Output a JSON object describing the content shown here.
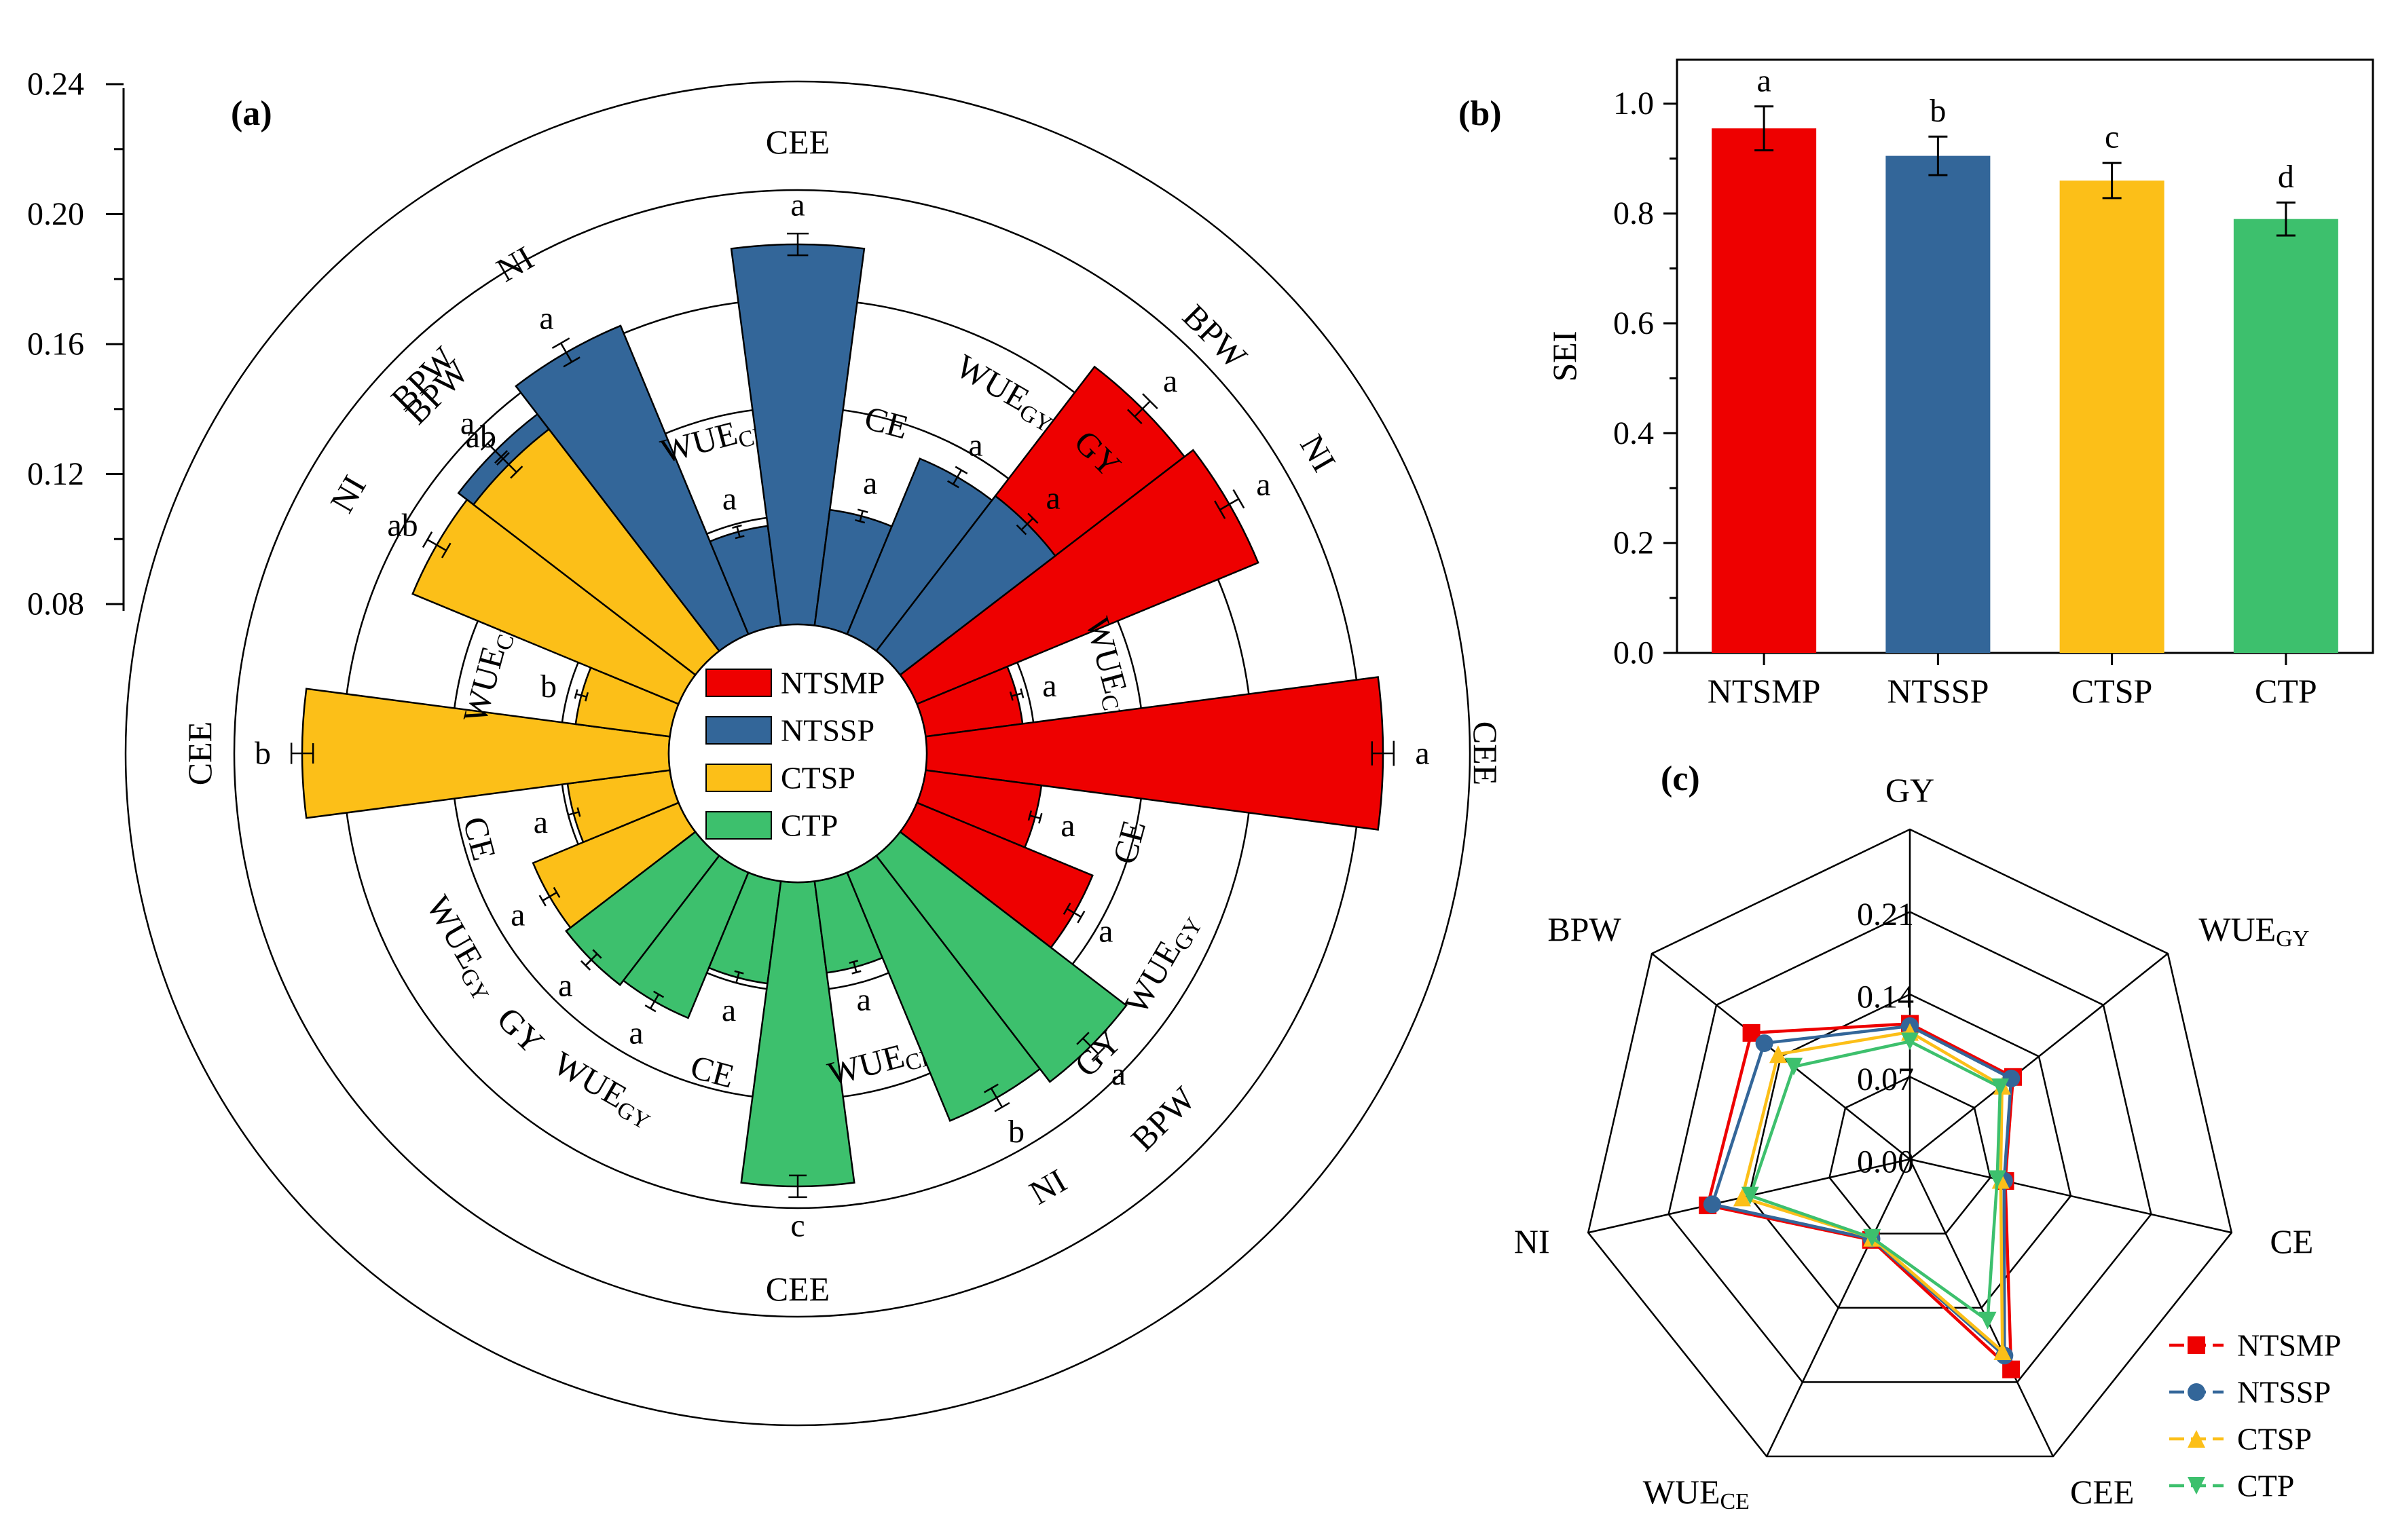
{
  "colors": {
    "NTSMP": "#EE0000",
    "NTSSP": "#336699",
    "CTSP": "#FCBF18",
    "CTP": "#3DC06D"
  },
  "panel_labels": {
    "a": "(a)",
    "b": "(b)",
    "c": "(c)"
  },
  "chart_data": [
    {
      "panel": "(a)",
      "type": "bar",
      "subtype": "radial",
      "ylim": [
        0.04,
        0.24
      ],
      "yticks": [
        "0.08",
        "0.12",
        "0.16",
        "0.20",
        "0.24"
      ],
      "legend_position": "center",
      "groups": [
        {
          "name": "NTSMP",
          "indicators": [
            {
              "label": "BPW",
              "value": 0.172,
              "err": 0.004,
              "sig": "a"
            },
            {
              "label": "NI",
              "value": 0.176,
              "err": 0.004,
              "sig": "a"
            },
            {
              "label": "WUE",
              "sub": "CE",
              "value": 0.076,
              "err": 0.002,
              "sig": "a"
            },
            {
              "label": "CEE",
              "value": 0.208,
              "err": 0.004,
              "sig": "a"
            },
            {
              "label": "CE",
              "value": 0.083,
              "err": 0.002,
              "sig": "a"
            },
            {
              "label": "WUE",
              "sub": "GY",
              "value": 0.11,
              "err": 0.003,
              "sig": "a"
            },
            {
              "label": "GY",
              "value": 0.112,
              "err": 0.003,
              "sig": "a"
            }
          ]
        },
        {
          "name": "NTSSP",
          "indicators": [
            {
              "label": "BPW",
              "value": 0.15,
              "err": 0.004,
              "sig": "a"
            },
            {
              "label": "NI",
              "value": 0.163,
              "err": 0.004,
              "sig": "a"
            },
            {
              "label": "WUE",
              "sub": "CE",
              "value": 0.077,
              "err": 0.002,
              "sig": "a"
            },
            {
              "label": "CEE",
              "value": 0.18,
              "err": 0.004,
              "sig": "a"
            },
            {
              "label": "CE",
              "value": 0.083,
              "err": 0.002,
              "sig": "a"
            },
            {
              "label": "WUE",
              "sub": "GY",
              "value": 0.11,
              "err": 0.003,
              "sig": "a"
            },
            {
              "label": "GY",
              "value": 0.112,
              "err": 0.003,
              "sig": "a"
            }
          ]
        },
        {
          "name": "CTSP",
          "indicators": [
            {
              "label": "GY",
              "value": 0.1,
              "err": 0.003,
              "sig": "a"
            },
            {
              "label": "WUE",
              "sub": "GY",
              "value": 0.098,
              "err": 0.003,
              "sig": "a"
            },
            {
              "label": "CE",
              "value": 0.078,
              "err": 0.002,
              "sig": "a"
            },
            {
              "label": "CEE",
              "value": 0.175,
              "err": 0.004,
              "sig": "b"
            },
            {
              "label": "WUE",
              "sub": "CE",
              "value": 0.075,
              "err": 0.002,
              "sig": "b"
            },
            {
              "label": "NI",
              "value": 0.146,
              "err": 0.004,
              "sig": "ab"
            },
            {
              "label": "BPW",
              "value": 0.143,
              "err": 0.004,
              "sig": "ab"
            }
          ]
        },
        {
          "name": "CTP",
          "indicators": [
            {
              "label": "GY",
              "value": 0.1,
              "err": 0.003,
              "sig": "a"
            },
            {
              "label": "WUE",
              "sub": "GY",
              "value": 0.098,
              "err": 0.003,
              "sig": "a"
            },
            {
              "label": "CE",
              "value": 0.078,
              "err": 0.002,
              "sig": "a"
            },
            {
              "label": "CEE",
              "value": 0.152,
              "err": 0.004,
              "sig": "c"
            },
            {
              "label": "WUE",
              "sub": "CE",
              "value": 0.074,
              "err": 0.002,
              "sig": "a"
            },
            {
              "label": "NI",
              "value": 0.139,
              "err": 0.004,
              "sig": "b"
            },
            {
              "label": "BPW",
              "value": 0.145,
              "err": 0.004,
              "sig": "a"
            }
          ]
        }
      ]
    },
    {
      "panel": "(b)",
      "type": "bar",
      "categories": [
        "NTSMP",
        "NTSSP",
        "CTSP",
        "CTP"
      ],
      "values": [
        0.955,
        0.905,
        0.86,
        0.79
      ],
      "errors": [
        0.04,
        0.035,
        0.032,
        0.03
      ],
      "sig": [
        "a",
        "b",
        "c",
        "d"
      ],
      "ylabel": "SEI",
      "ylim": [
        0,
        1.08
      ],
      "yticks": [
        "0.0",
        "0.2",
        "0.4",
        "0.6",
        "0.8",
        "1.0"
      ]
    },
    {
      "panel": "(c)",
      "type": "radar",
      "axes": [
        {
          "label": "GY"
        },
        {
          "label": "WUE",
          "sub": "GY"
        },
        {
          "label": "CE"
        },
        {
          "label": "CEE"
        },
        {
          "label": "WUE",
          "sub": "CE"
        },
        {
          "label": "NI"
        },
        {
          "label": "BPW"
        }
      ],
      "rlim": [
        0,
        0.21
      ],
      "rticks": [
        "0.00",
        "0.07",
        "0.14",
        "0.21"
      ],
      "legend_position": "bottom-right",
      "series": [
        {
          "name": "NTSMP",
          "marker": "square",
          "values": [
            0.115,
            0.112,
            0.083,
            0.198,
            0.076,
            0.176,
            0.172
          ]
        },
        {
          "name": "NTSSP",
          "marker": "circle",
          "values": [
            0.113,
            0.11,
            0.082,
            0.185,
            0.075,
            0.172,
            0.158
          ]
        },
        {
          "name": "CTSP",
          "marker": "triangle-up",
          "values": [
            0.108,
            0.1,
            0.079,
            0.181,
            0.074,
            0.146,
            0.143
          ]
        },
        {
          "name": "CTP",
          "marker": "triangle-down",
          "values": [
            0.1,
            0.098,
            0.076,
            0.152,
            0.074,
            0.139,
            0.126
          ]
        }
      ]
    }
  ]
}
